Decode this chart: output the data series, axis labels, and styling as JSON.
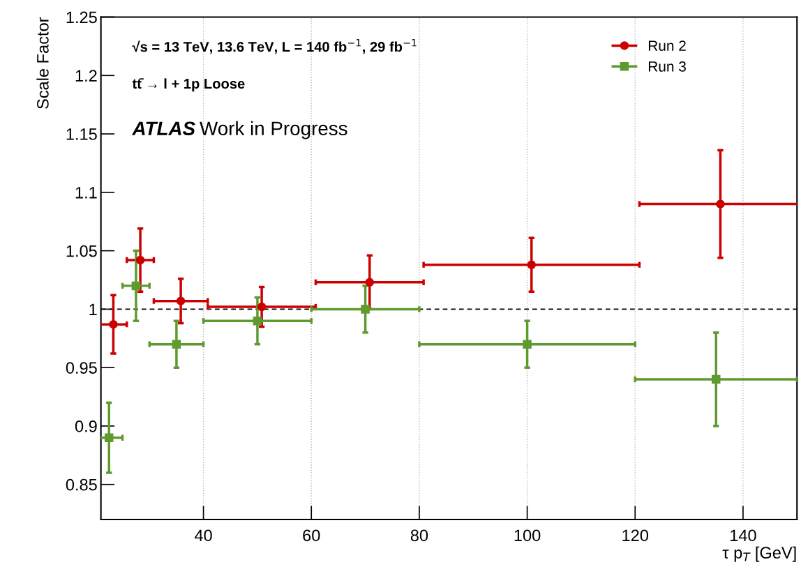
{
  "chart_data": {
    "type": "scatter",
    "xlabel": "τ p$_{T}$ [GeV]",
    "ylabel": "Scale Factor",
    "annotations": [
      "√s = 13 TeV, 13.6 TeV, L = 140 fb$^{−1}$, 29 fb$^{−1}$",
      "tt̄ → l + 1p Loose",
      "ATLAS",
      "Work in Progress"
    ],
    "series": [
      {
        "name": "Run 2",
        "color": "#cc0000",
        "marker": "circle",
        "x": [
          23.3,
          28.3,
          35.8,
          50.8,
          70.8,
          100.8,
          135.8
        ],
        "values": [
          0.987,
          1.042,
          1.007,
          1.002,
          1.023,
          1.038,
          1.09
        ],
        "errors": [
          0.025,
          0.027,
          0.019,
          0.017,
          0.023,
          0.023,
          0.046
        ],
        "xerrors": [
          2.5,
          2.5,
          5,
          10,
          10,
          20,
          15
        ]
      },
      {
        "name": "Run 3",
        "color": "#5f9a2f",
        "marker": "square",
        "x": [
          22.5,
          27.5,
          35,
          50,
          70,
          100,
          135
        ],
        "values": [
          0.89,
          1.02,
          0.97,
          0.99,
          1.0,
          0.97,
          0.94
        ],
        "errors": [
          0.03,
          0.03,
          0.02,
          0.02,
          0.02,
          0.02,
          0.04
        ],
        "xerrors": [
          2.5,
          2.5,
          5,
          10,
          10,
          20,
          15
        ]
      }
    ],
    "xlim": [
      21,
      150
    ],
    "xticks": [
      40,
      60,
      80,
      100,
      120,
      140
    ],
    "ylim": [
      0.82,
      1.25
    ],
    "yticks": [
      0.85,
      0.9,
      0.95,
      1,
      1.05,
      1.1,
      1.15,
      1.2,
      1.25
    ],
    "ref_lines": [
      {
        "axis": "y",
        "value": 1,
        "color": "#000000",
        "line_style": "dashed"
      }
    ],
    "grid": "x",
    "legend": "top right"
  }
}
